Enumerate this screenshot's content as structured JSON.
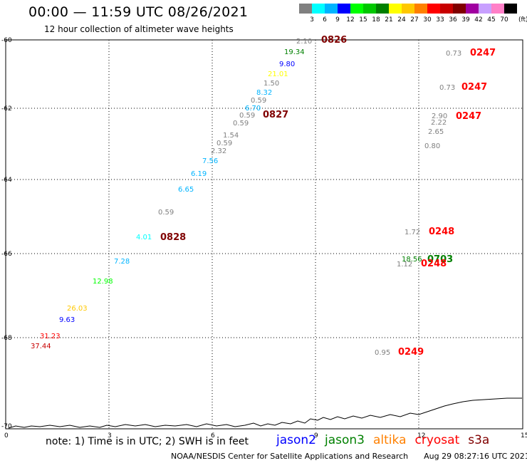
{
  "header": {
    "title": "00:00 — 11:59 UTC 08/26/2021",
    "subtitle": "12 hour collection of altimeter wave heights"
  },
  "colorbar": {
    "colors": [
      "#808080",
      "#00ffff",
      "#00b4ff",
      "#0000ff",
      "#00ff00",
      "#00c800",
      "#008000",
      "#ffff00",
      "#ffc800",
      "#ff8000",
      "#ff0000",
      "#c80000",
      "#800000",
      "#a000a0",
      "#c8a0ff",
      "#ff80c8",
      "#000000"
    ],
    "labels": [
      "3",
      "6",
      "9",
      "12",
      "15",
      "18",
      "21",
      "24",
      "27",
      "30",
      "33",
      "36",
      "39",
      "42",
      "45",
      "70"
    ],
    "unit": "(ft)"
  },
  "axes": {
    "x_ticks": [
      "0",
      "3",
      "6",
      "9",
      "12",
      "15"
    ],
    "y_ticks": [
      "-60",
      "-62",
      "-64",
      "-66",
      "-68",
      "-70"
    ]
  },
  "observations": [
    {
      "v": "2.10",
      "c": "#808080"
    },
    {
      "v": "19.34",
      "c": "#008000"
    },
    {
      "v": "9.80",
      "c": "#0000ff"
    },
    {
      "v": "21.01",
      "c": "#ffff00"
    },
    {
      "v": "1.50",
      "c": "#808080"
    },
    {
      "v": "8.32",
      "c": "#00b4ff"
    },
    {
      "v": "0.59",
      "c": "#808080"
    },
    {
      "v": "6.70",
      "c": "#00b4ff"
    },
    {
      "v": "0.59",
      "c": "#808080"
    },
    {
      "v": "0.59",
      "c": "#808080"
    },
    {
      "v": "1.54",
      "c": "#808080"
    },
    {
      "v": "0.59",
      "c": "#808080"
    },
    {
      "v": "2.32",
      "c": "#808080"
    },
    {
      "v": "7.56",
      "c": "#00b4ff"
    },
    {
      "v": "6.19",
      "c": "#00b4ff"
    },
    {
      "v": "6.65",
      "c": "#00b4ff"
    },
    {
      "v": "0.59",
      "c": "#808080"
    },
    {
      "v": "4.01",
      "c": "#00ffff"
    },
    {
      "v": "7.28",
      "c": "#00b4ff"
    },
    {
      "v": "12.98",
      "c": "#00ff00"
    },
    {
      "v": "26.03",
      "c": "#ffc800"
    },
    {
      "v": "9.63",
      "c": "#0000ff"
    },
    {
      "v": "31.23",
      "c": "#ff0000"
    },
    {
      "v": "37.44",
      "c": "#c80000"
    },
    {
      "v": "0.73",
      "c": "#808080"
    },
    {
      "v": "0.73",
      "c": "#808080"
    },
    {
      "v": "2.90",
      "c": "#808080"
    },
    {
      "v": "2.22",
      "c": "#808080"
    },
    {
      "v": "2.65",
      "c": "#808080"
    },
    {
      "v": "0.80",
      "c": "#808080"
    },
    {
      "v": "1.72",
      "c": "#808080"
    },
    {
      "v": "18.56",
      "c": "#008000"
    },
    {
      "v": "1.12",
      "c": "#808080"
    },
    {
      "v": "0.95",
      "c": "#808080"
    }
  ],
  "pass_times": [
    {
      "t": "0826",
      "c": "#800000"
    },
    {
      "t": "0827",
      "c": "#800000"
    },
    {
      "t": "0828",
      "c": "#800000"
    },
    {
      "t": "0247",
      "c": "#ff0000"
    },
    {
      "t": "0247",
      "c": "#ff0000"
    },
    {
      "t": "0247",
      "c": "#ff0000"
    },
    {
      "t": "0248",
      "c": "#ff0000"
    },
    {
      "t": "0703",
      "c": "#008000"
    },
    {
      "t": "0248",
      "c": "#ff0000"
    },
    {
      "t": "0249",
      "c": "#ff0000"
    }
  ],
  "footer": {
    "note": "note: 1) Time is in UTC; 2) SWH is in feet",
    "satellites": [
      {
        "name": "jason2",
        "c": "#0000ff"
      },
      {
        "name": "jason3",
        "c": "#008000"
      },
      {
        "name": "altika",
        "c": "#ff8000"
      },
      {
        "name": "cryosat",
        "c": "#ff0000"
      },
      {
        "name": "s3a",
        "c": "#800000"
      }
    ],
    "credit": "NOAA/NESDIS Center for Satellite Applications and Research",
    "timestamp": "Aug 29 08:27:16 UTC 2021"
  }
}
